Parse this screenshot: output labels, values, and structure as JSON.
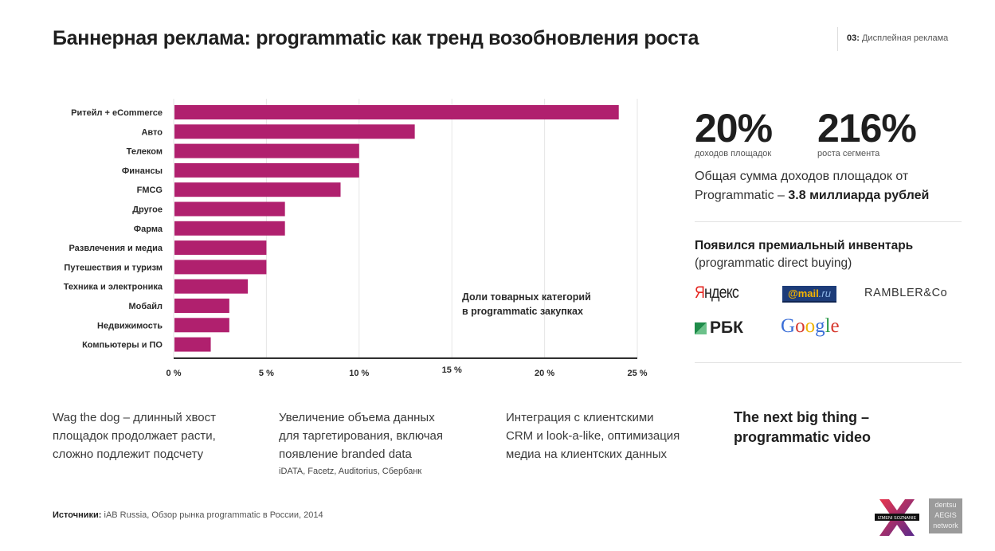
{
  "header": {
    "title": "Баннерная реклама: programmatic как тренд возобновления роста",
    "section_number": "03:",
    "section_name": "Дисплейная реклама"
  },
  "chart_data": {
    "type": "bar",
    "orientation": "horizontal",
    "title": "",
    "annotation": [
      "Доли товарных категорий",
      "в programmatic закупках"
    ],
    "categories": [
      "Ритейл + eCommerce",
      "Авто",
      "Телеком",
      "Финансы",
      "FMCG",
      "Другое",
      "Фарма",
      "Развлечения и медиа",
      "Путешествия и туризм",
      "Техника и электроника",
      "Мобайл",
      "Недвижимость",
      "Компьютеры и ПО"
    ],
    "values": [
      24,
      13,
      10,
      10,
      9,
      6,
      6,
      5,
      5,
      4,
      3,
      3,
      2
    ],
    "unit": "%",
    "xlabel": "",
    "ylabel": "",
    "xlim": [
      0,
      25
    ],
    "xticks": [
      0,
      5,
      10,
      15,
      20,
      25
    ],
    "xtick_labels": [
      "0 %",
      "5 %",
      "10 %",
      "15 %",
      "20 %",
      "25 %"
    ],
    "grid": true,
    "bar_color": "#b0206e"
  },
  "stats": [
    {
      "value": "20%",
      "caption": "доходов площадок"
    },
    {
      "value": "216%",
      "caption": "роста сегмента"
    }
  ],
  "summary": {
    "line1": "Общая сумма доходов площадок от",
    "line2_prefix": "Programmatic – ",
    "line2_bold": "3.8 миллиарда рублей"
  },
  "premium": {
    "heading": "Появился премиальный инвентарь",
    "subheading": "(programmatic direct buying)",
    "logos": {
      "yandex_first": "Я",
      "yandex_rest": "ндекс",
      "mail_at": "@mail",
      "mail_ru": ".ru",
      "rambler": "RAMBLER&Co",
      "rbk": "РБК",
      "google": [
        "G",
        "o",
        "o",
        "g",
        "l",
        "e"
      ]
    }
  },
  "bottom": {
    "col1": [
      "Wag the dog – длинный хвост",
      "площадок продолжает расти,",
      "сложно подлежит подсчету"
    ],
    "col2": [
      "Увеличение объема данных",
      "для таргетирования, включая",
      "появление branded data"
    ],
    "col2_small": "iDATA, Facetz, Auditorius, Сбербанк",
    "col3": [
      "Интеграция с клиентскими",
      "CRM и look-a-like, оптимизация",
      "медиа на клиентских данных"
    ],
    "col4": [
      "The next big thing –",
      "programmatic video"
    ]
  },
  "source": {
    "label": "Источники:",
    "text": " iAB Russia, Обзор рынка programmatic в России, 2014"
  },
  "footer_logos": {
    "izmeni": "IZMENI SOZNANIE",
    "dentsu": [
      "dentsu",
      "AEGIS",
      "network"
    ]
  }
}
